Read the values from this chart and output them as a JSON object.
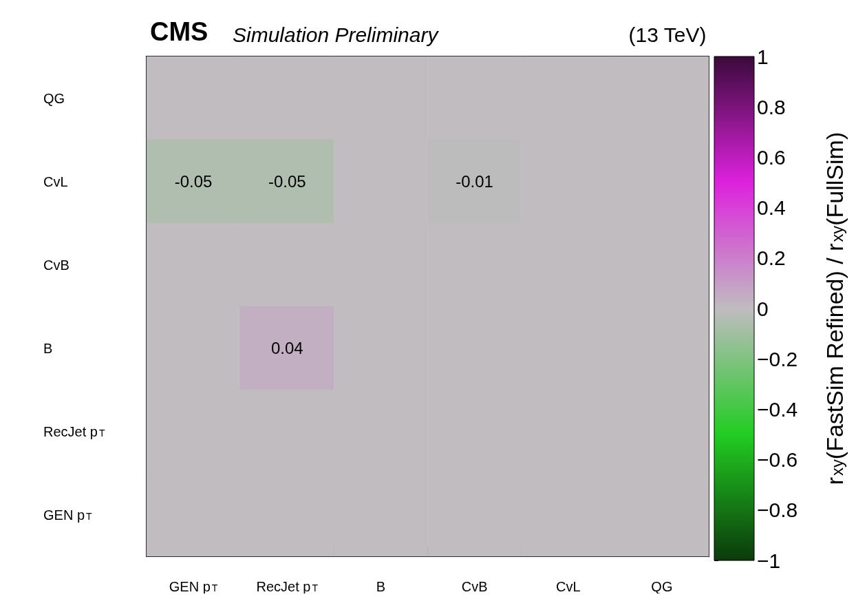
{
  "chart_data": {
    "type": "heatmap",
    "title": "CMS",
    "subtitle": "Simulation Preliminary",
    "annotations": [
      "(13 TeV)"
    ],
    "categories": [
      "GEN p$_{T}$",
      "RecJet p$_{T}$",
      "B",
      "CvB",
      "CvL",
      "QG"
    ],
    "y_categories": [
      "QG",
      "CvL",
      "CvB",
      "B",
      "RecJet p$_{T}$",
      "GEN p$_{T}$"
    ],
    "cells": [
      [
        0,
        0,
        0,
        0,
        0,
        0
      ],
      [
        -0.05,
        -0.05,
        0,
        -0.01,
        0,
        0
      ],
      [
        0,
        0,
        0,
        0,
        0,
        0
      ],
      [
        0,
        0.04,
        0,
        0,
        0,
        0
      ],
      [
        0,
        0,
        0,
        0,
        0,
        0
      ],
      [
        0,
        0,
        0,
        0,
        0,
        0
      ]
    ],
    "cell_labels": [
      [
        null,
        null,
        null,
        null,
        null,
        null
      ],
      [
        "-0.05",
        "-0.05",
        null,
        "-0.01",
        null,
        null
      ],
      [
        null,
        null,
        null,
        null,
        null,
        null
      ],
      [
        null,
        "0.04",
        null,
        null,
        null,
        null
      ],
      [
        null,
        null,
        null,
        null,
        null,
        null
      ],
      [
        null,
        null,
        null,
        null,
        null,
        null
      ]
    ],
    "clabel": "r$_{xy}$(FastSim Refined) / r$_{xy}$(FullSim)",
    "clim": [
      -1,
      1
    ],
    "cticks": [
      {
        "value": -1,
        "label": "−1"
      },
      {
        "value": -0.8,
        "label": "−0.8"
      },
      {
        "value": -0.6,
        "label": "−0.6"
      },
      {
        "value": -0.4,
        "label": "−0.4"
      },
      {
        "value": -0.2,
        "label": "−0.2"
      },
      0,
      0.2,
      0.4,
      0.6,
      0.8,
      1
    ],
    "colors": [
      "#0b3a0b",
      "#22cc22",
      "#c0bcc0",
      "#dd22dd",
      "#3a0a3a"
    ],
    "grid": false
  }
}
